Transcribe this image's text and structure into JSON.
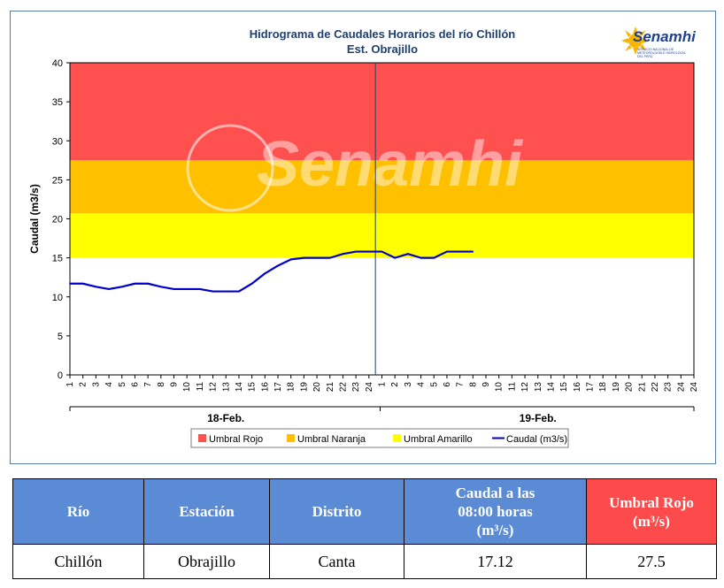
{
  "chart_data": {
    "type": "line",
    "title": "Hidrograma de Caudales Horarios del río Chillón",
    "subtitle": "Est. Obrajillo",
    "ylabel": "Caudal  (m3/s)",
    "ylim": [
      0,
      40
    ],
    "yticks": [
      0,
      5,
      10,
      15,
      20,
      25,
      30,
      35,
      40
    ],
    "x_hours": [
      "1",
      "2",
      "3",
      "4",
      "5",
      "6",
      "7",
      "8",
      "9",
      "10",
      "11",
      "12",
      "13",
      "14",
      "15",
      "16",
      "17",
      "18",
      "19",
      "20",
      "21",
      "22",
      "23",
      "24"
    ],
    "days": [
      "18-Feb.",
      "19-Feb."
    ],
    "thresholds": [
      {
        "name": "Umbral Rojo",
        "from": 27.5,
        "to": 40,
        "color": "#ff5050"
      },
      {
        "name": "Umbral Naranja",
        "from": 20.7,
        "to": 27.5,
        "color": "#ffc000"
      },
      {
        "name": "Umbral Amarillo",
        "from": 15,
        "to": 20.7,
        "color": "#ffff00"
      }
    ],
    "series": [
      {
        "name": "Caudal (m3/s)",
        "color": "#0000cc",
        "x": [
          1,
          2,
          3,
          4,
          5,
          6,
          7,
          8,
          9,
          10,
          11,
          12,
          13,
          14,
          15,
          16,
          17,
          18,
          19,
          20,
          21,
          22,
          23,
          24,
          25,
          26,
          27,
          28,
          29,
          30,
          31,
          32
        ],
        "values": [
          11.7,
          11.7,
          11.3,
          11.0,
          11.3,
          11.7,
          11.7,
          11.3,
          11.0,
          11.0,
          11.0,
          10.7,
          10.7,
          10.7,
          11.7,
          13.0,
          14.0,
          14.8,
          15.0,
          15.0,
          15.0,
          15.5,
          15.8,
          15.8,
          15.8,
          15.0,
          15.5,
          15.0,
          15.0,
          15.8,
          15.8,
          15.8
        ]
      }
    ],
    "legend_position": "bottom",
    "grid": false
  },
  "watermark": "Senamhi",
  "logo": {
    "name": "Senamhi",
    "subtitle": "SERVICIO NACIONAL DE METEOROLOGÍA E HIDROLOGÍA DEL PERÚ"
  },
  "table": {
    "headers": [
      "Río",
      "Estación",
      "Distrito",
      "Caudal a las 08:00 horas (m³/s)",
      "Umbral Rojo (m³/s)"
    ],
    "header_caudal_line1": "Caudal a las",
    "header_caudal_line2": "08:00 horas",
    "header_caudal_line3": "(m³/s)",
    "header_umbral_line1": "Umbral Rojo",
    "header_umbral_line2": "(m³/s)",
    "row": [
      "Chillón",
      "Obrajillo",
      "Canta",
      "17.12",
      "27.5"
    ]
  }
}
